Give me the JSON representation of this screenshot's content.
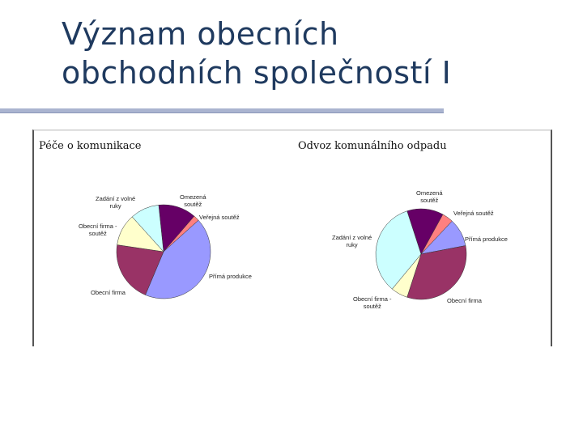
{
  "slide": {
    "title_line1": "Význam obecních",
    "title_line2": "obchodních společností I"
  },
  "chart_data": [
    {
      "type": "pie",
      "title": "Péče o komunikace",
      "slices": [
        {
          "label": "Omezená soutěž",
          "value": 13,
          "color": "#660066"
        },
        {
          "label": "Veřejná soutěž",
          "value": 2,
          "color": "#ff8080"
        },
        {
          "label": "Přímá produkce",
          "value": 43,
          "color": "#9999ff"
        },
        {
          "label": "Obecní firma",
          "value": 21,
          "color": "#993366"
        },
        {
          "label": "Obecní firma - soutěž",
          "value": 11,
          "color": "#ffffcc"
        },
        {
          "label": "Zadání z volné ruky",
          "value": 10,
          "color": "#ccffff"
        }
      ]
    },
    {
      "type": "pie",
      "title": "Odvoz komunálního odpadu",
      "slices": [
        {
          "label": "Omezená soutěž",
          "value": 13,
          "color": "#660066"
        },
        {
          "label": "Veřejná soutěž",
          "value": 4,
          "color": "#ff8080"
        },
        {
          "label": "Přímá produkce",
          "value": 10,
          "color": "#9999ff"
        },
        {
          "label": "Obecní firma",
          "value": 33,
          "color": "#993366"
        },
        {
          "label": "Obecní firma - soutěž",
          "value": 6,
          "color": "#ffffcc"
        },
        {
          "label": "Zadání z volné ruky",
          "value": 34,
          "color": "#ccffff"
        }
      ]
    }
  ]
}
